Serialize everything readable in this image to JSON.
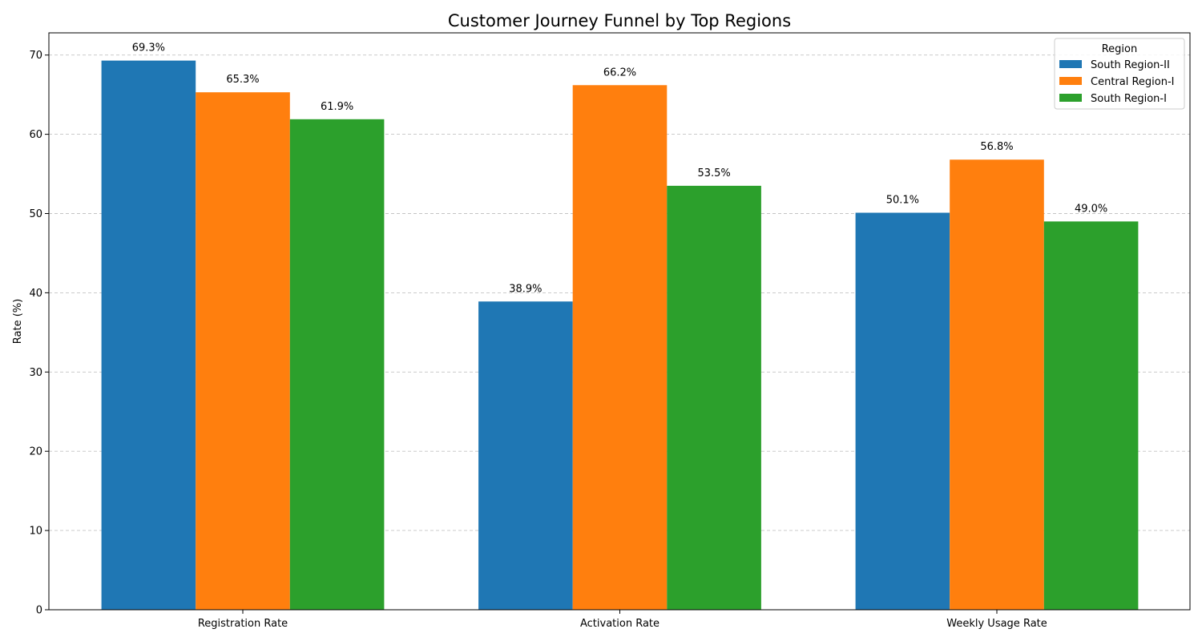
{
  "chart_data": {
    "type": "bar",
    "title": "Customer Journey Funnel by Top Regions",
    "xlabel": "",
    "ylabel": "Rate (%)",
    "ylim": [
      0,
      72.8
    ],
    "yticks": [
      0,
      10,
      20,
      30,
      40,
      50,
      60,
      70
    ],
    "grid": "y-dashed",
    "categories": [
      "Registration Rate",
      "Activation Rate",
      "Weekly Usage Rate"
    ],
    "series": [
      {
        "name": "South Region-II",
        "color": "#1f77b4",
        "values": [
          69.3,
          38.9,
          50.1
        ],
        "labels": [
          "69.3%",
          "38.9%",
          "50.1%"
        ]
      },
      {
        "name": "Central Region-I",
        "color": "#ff7f0e",
        "values": [
          65.3,
          66.2,
          56.8
        ],
        "labels": [
          "65.3%",
          "66.2%",
          "56.8%"
        ]
      },
      {
        "name": "South Region-I",
        "color": "#2ca02c",
        "values": [
          61.9,
          53.5,
          49.0
        ],
        "labels": [
          "61.9%",
          "53.5%",
          "49.0%"
        ]
      }
    ],
    "legend": {
      "title": "Region",
      "placement": "top-right"
    }
  }
}
